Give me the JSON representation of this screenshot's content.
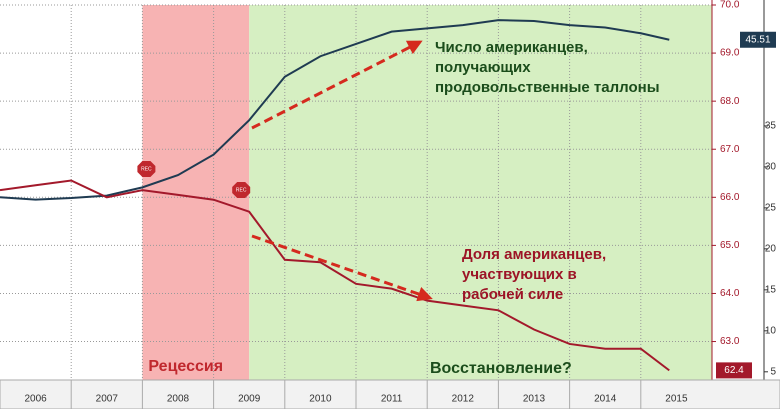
{
  "chart_data": {
    "type": "line",
    "xlim": [
      2006,
      2016
    ],
    "xgrid": [
      2007,
      2008,
      2009,
      2010,
      2011,
      2012,
      2013,
      2014,
      2015
    ],
    "xticks": [
      {
        "value": 2006.5,
        "label": "2006"
      },
      {
        "value": 2007.5,
        "label": "2007"
      },
      {
        "value": 2008.5,
        "label": "2008"
      },
      {
        "value": 2009.5,
        "label": "2009"
      },
      {
        "value": 2010.5,
        "label": "2010"
      },
      {
        "value": 2011.5,
        "label": "2011"
      },
      {
        "value": 2012.5,
        "label": "2012"
      },
      {
        "value": 2013.5,
        "label": "2013"
      },
      {
        "value": 2014.5,
        "label": "2014"
      },
      {
        "value": 2015.5,
        "label": "2015"
      }
    ],
    "ylim": [
      62.2,
      70.0
    ],
    "yticks": [
      {
        "value": 63,
        "label": "63.0"
      },
      {
        "value": 64,
        "label": "64.0"
      },
      {
        "value": 65,
        "label": "65.0"
      },
      {
        "value": 66,
        "label": "66.0"
      },
      {
        "value": 67,
        "label": "67.0"
      },
      {
        "value": 68,
        "label": "68.0"
      },
      {
        "value": 69,
        "label": "69.0"
      },
      {
        "value": 70,
        "label": "70.0"
      }
    ],
    "y2lim": [
      4,
      49.75
    ],
    "y2ticks": [
      5,
      10,
      15,
      20,
      25,
      30,
      35
    ],
    "grid": true,
    "x": [
      2006.0,
      2006.5,
      2007.0,
      2007.5,
      2008.0,
      2008.5,
      2009.0,
      2009.5,
      2010.0,
      2010.5,
      2011.0,
      2011.5,
      2012.0,
      2012.5,
      2013.0,
      2013.5,
      2014.0,
      2014.5,
      2015.0,
      2015.4
    ],
    "series": [
      {
        "color": "#1f3b52",
        "axis": "y2",
        "values": [
          26.3,
          26.0,
          26.2,
          26.5,
          27.5,
          29.0,
          31.5,
          35.7,
          41.0,
          43.5,
          45.0,
          46.5,
          46.9,
          47.3,
          47.9,
          47.8,
          47.3,
          47.0,
          46.3,
          45.51
        ]
      },
      {
        "color": "#a3192b",
        "values": [
          66.15,
          66.25,
          66.35,
          66.0,
          66.15,
          66.05,
          65.95,
          65.7,
          64.7,
          64.65,
          64.2,
          64.1,
          63.85,
          63.75,
          63.65,
          63.25,
          62.95,
          62.85,
          62.85,
          62.4
        ]
      }
    ],
    "regions": [
      {
        "label": "Рецессия",
        "x": [
          2008.0,
          2009.5
        ],
        "color": "#f7b3b3"
      },
      {
        "label": "Восстановление?",
        "x": [
          2009.5,
          2016
        ],
        "color": "#d6efc2"
      }
    ],
    "markers": [
      "REC",
      "REC"
    ],
    "annotations": [
      {
        "lines": [
          "Число американцев,",
          "получающих",
          "продовольственные таллоны"
        ],
        "color": "#1b4d1b"
      },
      {
        "lines": [
          "Доля американцев,",
          "участвующих в",
          "рабочей силе"
        ],
        "color": "#9c1426"
      }
    ]
  }
}
